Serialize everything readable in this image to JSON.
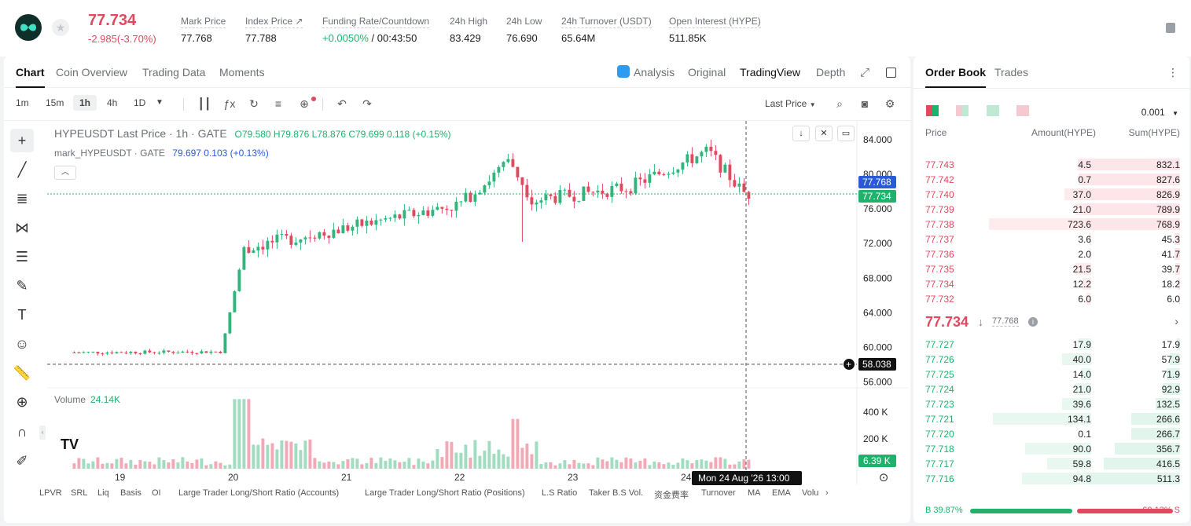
{
  "header": {
    "last_price": "77.734",
    "change": "-2.985(-3.70%)",
    "stats": [
      {
        "label": "Mark Price",
        "value": "77.768"
      },
      {
        "label": "Index Price ↗",
        "value": "77.788"
      },
      {
        "label": "Funding Rate/Countdown",
        "value": "+0.0050%",
        "value2": " / 00:43:50"
      },
      {
        "label": "24h High",
        "value": "83.429"
      },
      {
        "label": "24h Low",
        "value": "76.690"
      },
      {
        "label": "24h Turnover (USDT)",
        "value": "65.64M"
      },
      {
        "label": "Open Interest (HYPE)",
        "value": "511.85K"
      }
    ]
  },
  "chart_tabs": [
    "Chart",
    "Coin Overview",
    "Trading Data",
    "Moments"
  ],
  "chart_right_tabs": {
    "analysis": "Analysis",
    "original": "Original",
    "tradingview": "TradingView",
    "depth": "Depth"
  },
  "intervals": [
    "1m",
    "15m",
    "1h",
    "4h",
    "1D"
  ],
  "price_mode": "Last Price",
  "legend": {
    "title": "HYPEUSDT Last Price · 1h · GATE",
    "ohlc": "O79.580  H79.876  L78.876  C79.699  0.118  (+0.15%)",
    "mark_label": "mark_HYPEUSDT · GATE",
    "mark_values": "79.697  0.103  (+0.13%)",
    "volume_label": "Volume",
    "volume_value": "24.14K"
  },
  "bottom_indicators": [
    "LPVR",
    "SRL",
    "Liq",
    "Basis",
    "OI",
    "Large Trader Long/Short Ratio (Accounts)",
    "Large Trader Long/Short Ratio (Positions)",
    "L.S Ratio",
    "Taker B.S Vol.",
    "资金费率",
    "Turnover",
    "MA",
    "EMA",
    "Volu"
  ],
  "chart_data": {
    "type": "candlestick",
    "symbol": "HYPEUSDT",
    "interval": "1h",
    "yticks": [
      "84.000",
      "80.000",
      "76.000",
      "72.000",
      "68.000",
      "64.000",
      "60.000",
      "56.000"
    ],
    "vol_ticks": [
      "400 K",
      "200 K"
    ],
    "xticks": [
      "19",
      "20",
      "21",
      "22",
      "23",
      "24"
    ],
    "price_labels": {
      "mark": "77.768",
      "last": "77.734",
      "crosshair": "58.038",
      "volume": "6.39 K",
      "time": "Mon 24 Aug '26   13:00"
    },
    "ylim": [
      55.5,
      85
    ],
    "key_points": [
      {
        "day": 18.6,
        "close": 59.4
      },
      {
        "day": 19.9,
        "close": 59.5
      },
      {
        "day": 20.1,
        "close": 71.5
      },
      {
        "day": 21.0,
        "close": 73.8
      },
      {
        "day": 22.0,
        "close": 76.5
      },
      {
        "day": 22.45,
        "close": 81.5
      },
      {
        "day": 22.65,
        "close": 77.0
      },
      {
        "day": 23.5,
        "close": 78.5
      },
      {
        "day": 24.2,
        "close": 82.7
      },
      {
        "day": 24.5,
        "close": 78.0
      },
      {
        "day": 24.55,
        "close": 77.734
      }
    ]
  },
  "orderbook": {
    "tabs": [
      "Order Book",
      "Trades"
    ],
    "tick": "0.001",
    "headers": {
      "price": "Price",
      "amount": "Amount(HYPE)",
      "sum": "Sum(HYPE)"
    },
    "asks": [
      {
        "price": "77.743",
        "amount": "4.5",
        "sum": "832.1"
      },
      {
        "price": "77.742",
        "amount": "0.7",
        "sum": "827.6"
      },
      {
        "price": "77.740",
        "amount": "37.0",
        "sum": "826.9"
      },
      {
        "price": "77.739",
        "amount": "21.0",
        "sum": "789.9"
      },
      {
        "price": "77.738",
        "amount": "723.6",
        "sum": "768.9"
      },
      {
        "price": "77.737",
        "amount": "3.6",
        "sum": "45.3"
      },
      {
        "price": "77.736",
        "amount": "2.0",
        "sum": "41.7"
      },
      {
        "price": "77.735",
        "amount": "21.5",
        "sum": "39.7"
      },
      {
        "price": "77.734",
        "amount": "12.2",
        "sum": "18.2"
      },
      {
        "price": "77.732",
        "amount": "6.0",
        "sum": "6.0"
      }
    ],
    "mid": {
      "price": "77.734",
      "mark": "77.768"
    },
    "bids": [
      {
        "price": "77.727",
        "amount": "17.9",
        "sum": "17.9"
      },
      {
        "price": "77.726",
        "amount": "40.0",
        "sum": "57.9"
      },
      {
        "price": "77.725",
        "amount": "14.0",
        "sum": "71.9"
      },
      {
        "price": "77.724",
        "amount": "21.0",
        "sum": "92.9"
      },
      {
        "price": "77.723",
        "amount": "39.6",
        "sum": "132.5"
      },
      {
        "price": "77.721",
        "amount": "134.1",
        "sum": "266.6"
      },
      {
        "price": "77.720",
        "amount": "0.1",
        "sum": "266.7"
      },
      {
        "price": "77.718",
        "amount": "90.0",
        "sum": "356.7"
      },
      {
        "price": "77.717",
        "amount": "59.8",
        "sum": "416.5"
      },
      {
        "price": "77.716",
        "amount": "94.8",
        "sum": "511.3"
      }
    ],
    "buy_ratio": "B 39.87%",
    "sell_ratio": "60.13% S"
  }
}
